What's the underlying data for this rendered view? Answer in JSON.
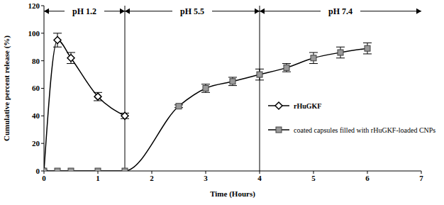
{
  "chart_data": {
    "type": "line",
    "x_label": "Time (Hours)",
    "y_label": "Cumulative percent release (%)",
    "xlim": [
      0,
      7
    ],
    "xticks": [
      0,
      1,
      2,
      3,
      4,
      5,
      6,
      7
    ],
    "ylim": [
      0,
      120
    ],
    "yticks": [
      0,
      20,
      40,
      60,
      80,
      100,
      120
    ],
    "grid": false,
    "legend": "right",
    "series": [
      {
        "name": "rHuGKF",
        "color": "#000000",
        "marker": "diamond",
        "line_style": "solid",
        "x": [
          0,
          0.25,
          0.5,
          1,
          1.5
        ],
        "values": [
          0,
          95,
          82,
          54,
          40
        ],
        "errors": [
          0,
          5,
          4,
          3,
          2
        ]
      },
      {
        "name": "coated capsules filled with rHuGKF-loaded CNPs",
        "color": "#999999",
        "marker": "square",
        "line_style": "solid",
        "x": [
          0,
          0.25,
          0.5,
          1,
          1.5,
          2.5,
          3,
          3.5,
          4,
          4.5,
          5,
          5.5,
          6
        ],
        "values": [
          0,
          0,
          0,
          0,
          0,
          47,
          60,
          65,
          70,
          75,
          82,
          86,
          89
        ],
        "errors": [
          0,
          0,
          0,
          0,
          0,
          1,
          3,
          3,
          4,
          3,
          4,
          4,
          4
        ]
      }
    ],
    "annotations": [
      {
        "text": "pH 1.2",
        "x_start": 0,
        "x_end": 1.5,
        "y": 116
      },
      {
        "text": "pH 5.5",
        "x_start": 1.5,
        "x_end": 4,
        "y": 116
      },
      {
        "text": "pH 7.4",
        "x_start": 4,
        "x_end": 7,
        "y": 116
      }
    ]
  }
}
